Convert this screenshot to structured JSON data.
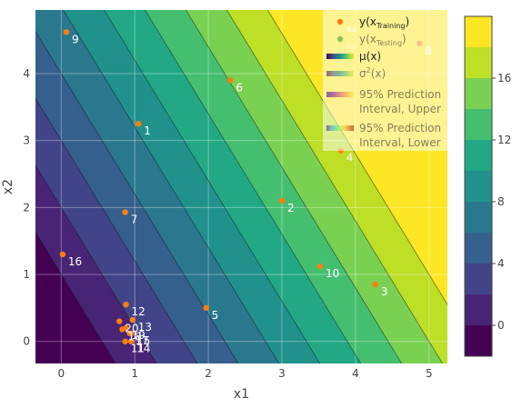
{
  "chart_data": {
    "type": "contour",
    "xlabel": "x1",
    "ylabel": "x2",
    "xlim": [
      -0.35,
      5.25
    ],
    "ylim": [
      -0.33,
      4.95
    ],
    "x_ticks": [
      0,
      1,
      2,
      3,
      4,
      5
    ],
    "x_tick_labels": [
      "0",
      "1",
      "2",
      "3",
      "4",
      "5"
    ],
    "y_ticks": [
      0,
      1,
      2,
      3,
      4
    ],
    "y_tick_labels": [
      "0",
      "1",
      "2",
      "3",
      "4"
    ],
    "grid": true,
    "surface": {
      "name": "μ(x)",
      "model": "linear",
      "offset": -2.0,
      "coef_x1": 3.6,
      "coef_x2": 2.0,
      "contour_start": -2,
      "contour_step": 2,
      "contour_levels": 11
    },
    "colorbar": {
      "range": [
        -2,
        20
      ],
      "ticks": [
        0,
        4,
        8,
        12,
        16
      ],
      "tick_labels": [
        "0",
        "4",
        "8",
        "12",
        "16"
      ],
      "colors": [
        "#440154",
        "#482475",
        "#414487",
        "#355f8d",
        "#2a788e",
        "#21918c",
        "#22a884",
        "#44bf70",
        "#7ad151",
        "#bddf26",
        "#fde725"
      ]
    },
    "series": [
      {
        "name": "y(x_Training)",
        "type": "scatter",
        "color": "#ff7f0e",
        "points": [
          {
            "x": 1.05,
            "y": 3.25,
            "label": "1"
          },
          {
            "x": 3.0,
            "y": 2.1,
            "label": "2"
          },
          {
            "x": 4.27,
            "y": 0.85,
            "label": "3"
          },
          {
            "x": 3.8,
            "y": 2.85,
            "label": "4"
          },
          {
            "x": 1.97,
            "y": 0.5,
            "label": "5"
          },
          {
            "x": 2.3,
            "y": 3.9,
            "label": "6"
          },
          {
            "x": 0.87,
            "y": 1.93,
            "label": "7"
          },
          {
            "x": 4.87,
            "y": 4.45,
            "label": "8"
          },
          {
            "x": 0.07,
            "y": 4.62,
            "label": "9"
          },
          {
            "x": 3.52,
            "y": 1.12,
            "label": "10"
          },
          {
            "x": 0.87,
            "y": 0.0,
            "label": "11"
          },
          {
            "x": 0.88,
            "y": 0.55,
            "label": "12"
          },
          {
            "x": 0.97,
            "y": 0.32,
            "label": "13"
          },
          {
            "x": 0.95,
            "y": 0.0,
            "label": "14"
          },
          {
            "x": 0.95,
            "y": 0.12,
            "label": "15"
          },
          {
            "x": 0.02,
            "y": 1.3,
            "label": "16"
          },
          {
            "x": 0.93,
            "y": 0.12,
            "label": "17"
          },
          {
            "x": 0.83,
            "y": 0.18,
            "label": "18"
          },
          {
            "x": 0.88,
            "y": 0.2,
            "label": "19"
          },
          {
            "x": 0.79,
            "y": 0.3,
            "label": "20"
          }
        ]
      },
      {
        "name": "y(x_Testing)",
        "type": "scatter",
        "color": "#2ca02c",
        "points": []
      }
    ],
    "legend": {
      "placement": "top-right",
      "background": "rgba(255,255,255,0.5)",
      "entries": [
        {
          "kind": "marker",
          "color": "#ff7f0e",
          "label_main": "y(x",
          "label_sub": "Training",
          "label_end": ")",
          "faded": false
        },
        {
          "kind": "marker",
          "color": "#2ca02c",
          "label_main": "y(x",
          "label_sub": "Testing",
          "label_end": ")",
          "faded": true
        },
        {
          "kind": "gradient",
          "colors": [
            "#440154",
            "#3b528b",
            "#21918c",
            "#5ec962",
            "#fde725"
          ],
          "label_main": "μ(x)",
          "faded": false
        },
        {
          "kind": "gradient",
          "colors": [
            "#440154",
            "#3b528b",
            "#21918c",
            "#5ec962",
            "#fde725"
          ],
          "label_main": "σ",
          "label_sup": "2",
          "label_end": "(x)",
          "faded": true
        },
        {
          "kind": "gradient",
          "colors": [
            "#0d0887",
            "#7e03a8",
            "#cc4778",
            "#f89540",
            "#f0f921"
          ],
          "label_main": "95% Prediction",
          "label_line2": "Interval, Upper",
          "faded": true
        },
        {
          "kind": "gradient",
          "colors": [
            "#30123b",
            "#4686fb",
            "#1ae4b6",
            "#a2fc3c",
            "#fabd3d",
            "#e4460a",
            "#7a0403"
          ],
          "label_main": "95% Prediction",
          "label_line2": "Interval, Lower",
          "faded": true
        }
      ],
      "overlay_text": "Aa"
    }
  }
}
